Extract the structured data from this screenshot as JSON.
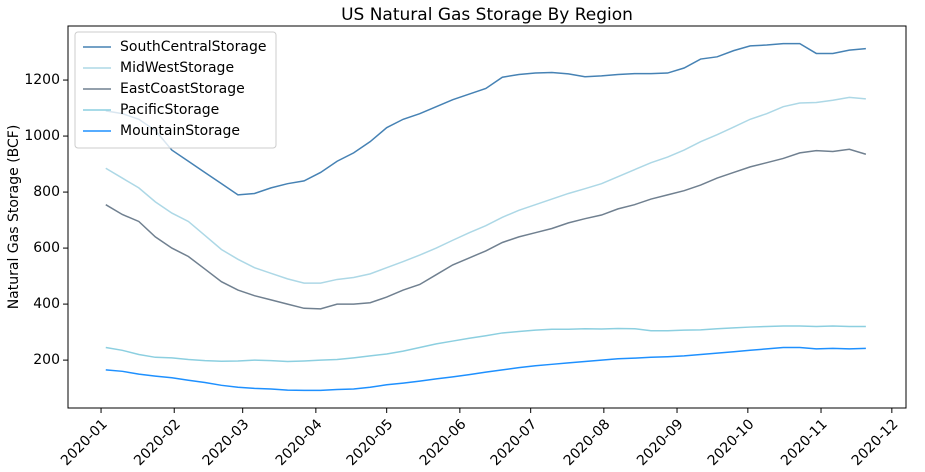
{
  "chart_data": {
    "type": "line",
    "title": "US Natural Gas Storage By Region",
    "ylabel": "Natural Gas Storage (BCF)",
    "x": [
      2,
      9,
      16,
      23,
      30,
      37,
      44,
      51,
      58,
      65,
      72,
      79,
      86,
      93,
      100,
      107,
      114,
      121,
      128,
      135,
      142,
      149,
      156,
      163,
      170,
      177,
      184,
      191,
      198,
      205,
      212,
      219,
      226,
      233,
      240,
      247,
      254,
      261,
      268,
      275,
      282,
      289,
      296,
      303,
      310,
      317,
      324
    ],
    "xlim": [
      -14,
      341
    ],
    "xticks": [
      {
        "value": 0,
        "label": "2020-01"
      },
      {
        "value": 31,
        "label": "2020-02"
      },
      {
        "value": 60,
        "label": "2020-03"
      },
      {
        "value": 91,
        "label": "2020-04"
      },
      {
        "value": 121,
        "label": "2020-05"
      },
      {
        "value": 152,
        "label": "2020-06"
      },
      {
        "value": 182,
        "label": "2020-07"
      },
      {
        "value": 213,
        "label": "2020-08"
      },
      {
        "value": 244,
        "label": "2020-09"
      },
      {
        "value": 274,
        "label": "2020-10"
      },
      {
        "value": 305,
        "label": "2020-11"
      },
      {
        "value": 335,
        "label": "2020-12"
      }
    ],
    "ylim": [
      29,
      1393
    ],
    "yticks": [
      200,
      400,
      600,
      800,
      1000,
      1200
    ],
    "legend": "upper left",
    "series": [
      {
        "name": "SouthCentralStorage",
        "color": "#4682b4",
        "values": [
          1090,
          1080,
          1060,
          1020,
          950,
          910,
          870,
          830,
          790,
          795,
          815,
          830,
          840,
          870,
          910,
          940,
          980,
          1030,
          1060,
          1080,
          1105,
          1130,
          1150,
          1170,
          1210,
          1220,
          1225,
          1227,
          1222,
          1212,
          1215,
          1220,
          1223,
          1223,
          1225,
          1243,
          1275,
          1283,
          1305,
          1322,
          1325,
          1330,
          1330,
          1295,
          1295,
          1307,
          1312
        ]
      },
      {
        "name": "MidWestStorage",
        "color": "#add8e6",
        "values": [
          885,
          850,
          815,
          765,
          725,
          695,
          645,
          595,
          560,
          530,
          510,
          490,
          475,
          475,
          488,
          495,
          508,
          530,
          552,
          575,
          600,
          628,
          655,
          680,
          710,
          735,
          755,
          775,
          795,
          812,
          830,
          855,
          880,
          905,
          925,
          950,
          980,
          1005,
          1032,
          1060,
          1080,
          1105,
          1118,
          1120,
          1128,
          1138,
          1133
        ]
      },
      {
        "name": "EastCoastStorage",
        "color": "#708090",
        "values": [
          755,
          720,
          695,
          640,
          600,
          570,
          525,
          480,
          450,
          430,
          415,
          400,
          385,
          383,
          400,
          400,
          405,
          425,
          450,
          470,
          505,
          540,
          565,
          590,
          620,
          640,
          655,
          670,
          690,
          705,
          718,
          740,
          755,
          775,
          790,
          805,
          825,
          850,
          870,
          890,
          905,
          920,
          940,
          948,
          945,
          953,
          935
        ]
      },
      {
        "name": "PacificStorage",
        "color": "#8ccfe0",
        "values": [
          245,
          235,
          220,
          210,
          208,
          202,
          198,
          196,
          197,
          200,
          198,
          195,
          197,
          200,
          202,
          208,
          215,
          222,
          232,
          245,
          258,
          268,
          278,
          287,
          297,
          302,
          307,
          310,
          310,
          312,
          311,
          313,
          312,
          305,
          305,
          307,
          308,
          312,
          315,
          318,
          320,
          322,
          322,
          320,
          322,
          320,
          320
        ]
      },
      {
        "name": "MountainStorage",
        "color": "#1e90ff",
        "values": [
          165,
          160,
          150,
          143,
          137,
          128,
          120,
          110,
          103,
          99,
          97,
          93,
          92,
          92,
          95,
          97,
          103,
          112,
          118,
          125,
          133,
          140,
          148,
          157,
          165,
          173,
          180,
          185,
          190,
          195,
          200,
          205,
          207,
          210,
          212,
          215,
          220,
          225,
          230,
          235,
          240,
          245,
          245,
          240,
          242,
          240,
          242
        ]
      }
    ]
  }
}
